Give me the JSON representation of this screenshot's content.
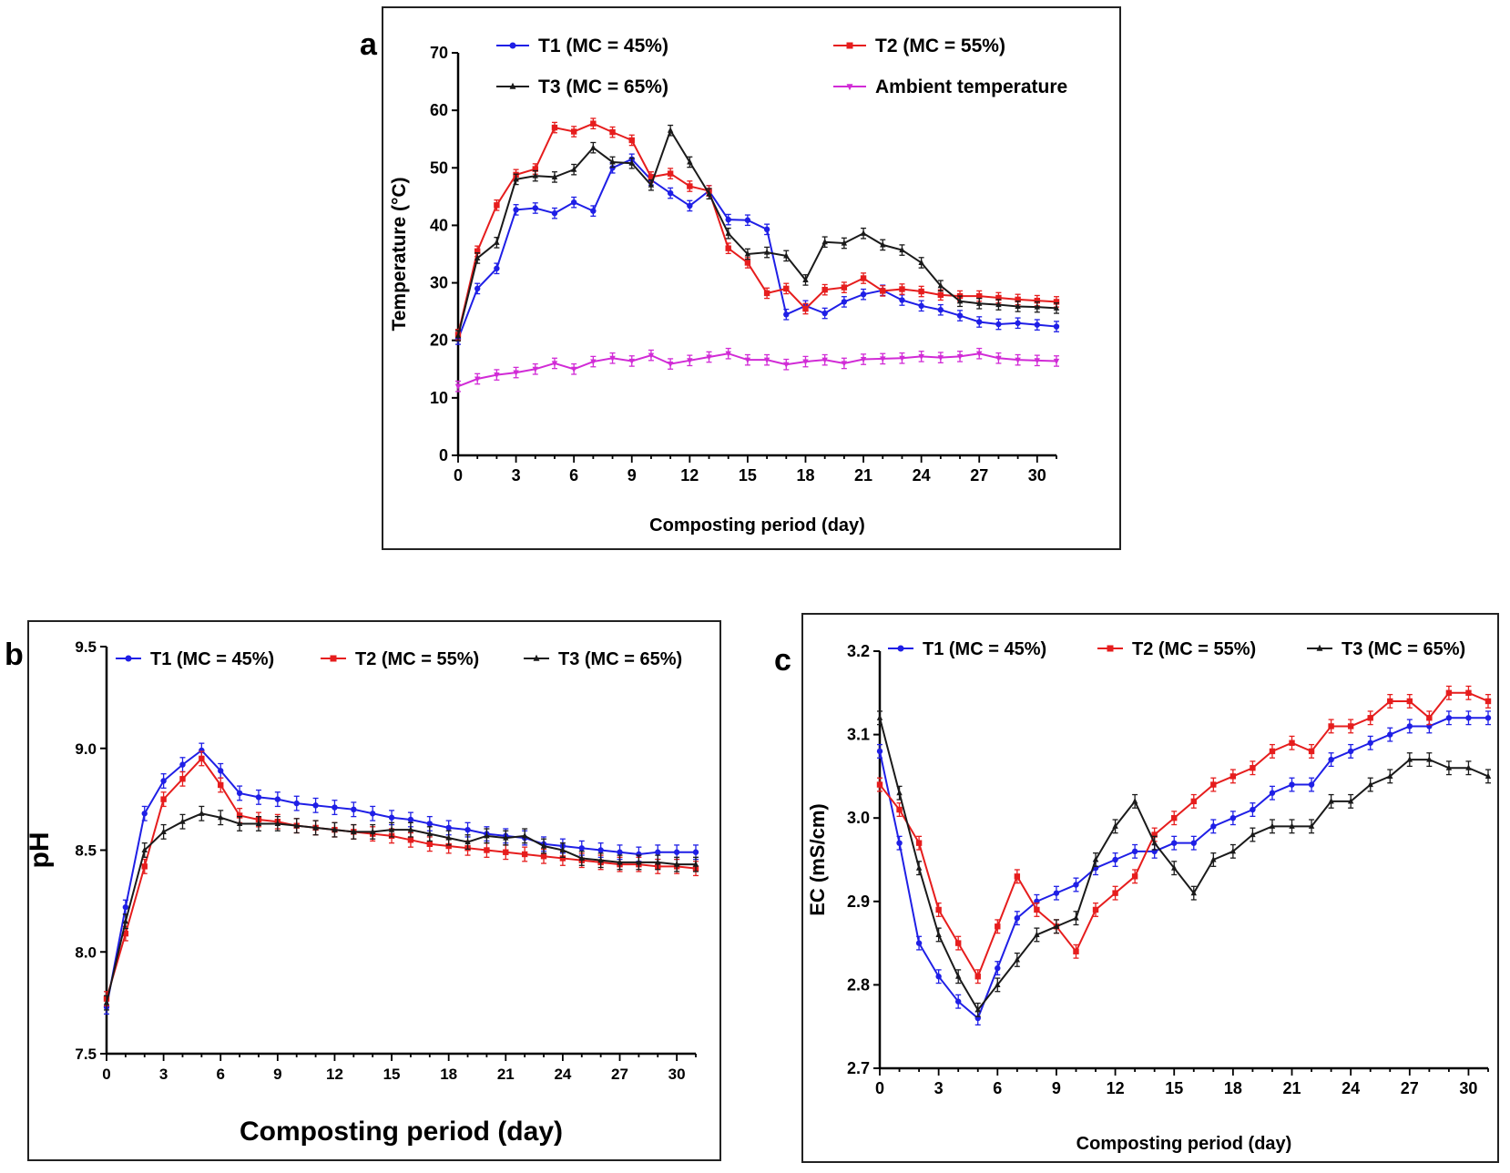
{
  "figure": {
    "labels": [
      "a",
      "b",
      "c"
    ]
  },
  "chart_data": [
    {
      "id": "a",
      "type": "line",
      "title": "",
      "xlabel": "Composting period (day)",
      "ylabel": "Temperature (°C)",
      "xlim": [
        0,
        31
      ],
      "ylim": [
        0,
        70
      ],
      "xticks": [
        0,
        3,
        6,
        9,
        12,
        15,
        18,
        21,
        24,
        27,
        30
      ],
      "yticks": [
        0,
        10,
        20,
        30,
        40,
        50,
        60,
        70
      ],
      "x": [
        0,
        1,
        2,
        3,
        4,
        5,
        6,
        7,
        8,
        9,
        10,
        11,
        12,
        13,
        14,
        15,
        16,
        17,
        18,
        19,
        20,
        21,
        22,
        23,
        24,
        25,
        26,
        27,
        28,
        29,
        30,
        31
      ],
      "legend_position": "top",
      "series": [
        {
          "name": "T1 (MC = 45%)",
          "color": "#1f1fe6",
          "marker": "circle",
          "values": [
            20.2,
            29,
            32.5,
            42.7,
            43,
            42.1,
            44,
            42.5,
            50,
            51.5,
            47.9,
            45.6,
            43.4,
            46,
            41,
            40.9,
            39.3,
            24.5,
            26,
            24.7,
            26.7,
            28,
            28.7,
            27,
            26,
            25.3,
            24.3,
            23.2,
            22.8,
            23,
            22.7,
            22.4
          ]
        },
        {
          "name": "T2 (MC = 55%)",
          "color": "#e61d1d",
          "marker": "square",
          "values": [
            21,
            35.5,
            43.5,
            48.8,
            49.8,
            57,
            56.3,
            57.7,
            56.2,
            54.8,
            48.4,
            49,
            46.8,
            46,
            36,
            33.5,
            28.2,
            29,
            25.5,
            28.8,
            29.2,
            30.8,
            28.6,
            28.9,
            28.5,
            27.9,
            27.7,
            27.7,
            27.4,
            27.1,
            26.9,
            26.7
          ]
        },
        {
          "name": "T3 (MC = 65%)",
          "color": "#1a1a1a",
          "marker": "triangle",
          "values": [
            20.8,
            34.3,
            37,
            48,
            48.6,
            48.4,
            49.7,
            53.5,
            51,
            50.8,
            47,
            56.5,
            51,
            45.5,
            38.6,
            35,
            35.3,
            34.7,
            30.5,
            37.1,
            36.9,
            38.6,
            36.6,
            35.7,
            33.5,
            29.5,
            26.8,
            26.4,
            26.2,
            25.9,
            25.8,
            25.6
          ]
        },
        {
          "name": "Ambient temperature",
          "color": "#d12bd6",
          "marker": "triangle-down",
          "values": [
            12,
            13.3,
            14,
            14.4,
            15,
            16,
            15,
            16.3,
            16.9,
            16.4,
            17.4,
            15.9,
            16.5,
            17.1,
            17.7,
            16.6,
            16.6,
            15.8,
            16.3,
            16.6,
            16,
            16.7,
            16.8,
            16.9,
            17.2,
            17,
            17.2,
            17.7,
            16.9,
            16.6,
            16.5,
            16.4
          ]
        }
      ]
    },
    {
      "id": "b",
      "type": "line",
      "title": "",
      "xlabel": "Composting period (day)",
      "ylabel": "pH",
      "xlim": [
        0,
        31
      ],
      "ylim": [
        7.5,
        9.5
      ],
      "xticks": [
        0,
        3,
        6,
        9,
        12,
        15,
        18,
        21,
        24,
        27,
        30
      ],
      "yticks": [
        7.5,
        8.0,
        8.5,
        9.0,
        9.5
      ],
      "x": [
        0,
        1,
        2,
        3,
        4,
        5,
        6,
        7,
        8,
        9,
        10,
        11,
        12,
        13,
        14,
        15,
        16,
        17,
        18,
        19,
        20,
        21,
        22,
        23,
        24,
        25,
        26,
        27,
        28,
        29,
        30,
        31
      ],
      "legend_position": "top",
      "series": [
        {
          "name": "T1 (MC = 45%)",
          "color": "#1f1fe6",
          "marker": "circle",
          "values": [
            7.73,
            8.22,
            8.68,
            8.84,
            8.92,
            8.99,
            8.89,
            8.78,
            8.76,
            8.75,
            8.73,
            8.72,
            8.71,
            8.7,
            8.68,
            8.66,
            8.65,
            8.63,
            8.61,
            8.6,
            8.58,
            8.57,
            8.56,
            8.53,
            8.52,
            8.51,
            8.5,
            8.49,
            8.48,
            8.49,
            8.49,
            8.49
          ]
        },
        {
          "name": "T2 (MC = 55%)",
          "color": "#e61d1d",
          "marker": "square",
          "values": [
            7.77,
            8.09,
            8.42,
            8.75,
            8.85,
            8.95,
            8.82,
            8.67,
            8.65,
            8.64,
            8.62,
            8.61,
            8.6,
            8.59,
            8.58,
            8.57,
            8.55,
            8.53,
            8.52,
            8.51,
            8.5,
            8.49,
            8.48,
            8.47,
            8.46,
            8.45,
            8.44,
            8.43,
            8.43,
            8.42,
            8.42,
            8.41
          ]
        },
        {
          "name": "T3 (MC = 65%)",
          "color": "#1a1a1a",
          "marker": "triangle",
          "values": [
            7.75,
            8.15,
            8.5,
            8.59,
            8.64,
            8.68,
            8.66,
            8.63,
            8.63,
            8.63,
            8.62,
            8.61,
            8.6,
            8.59,
            8.59,
            8.6,
            8.6,
            8.58,
            8.56,
            8.54,
            8.57,
            8.56,
            8.57,
            8.52,
            8.5,
            8.46,
            8.45,
            8.44,
            8.44,
            8.44,
            8.43,
            8.43
          ]
        }
      ]
    },
    {
      "id": "c",
      "type": "line",
      "title": "",
      "xlabel": "Composting period (day)",
      "ylabel": "EC (mS/cm)",
      "xlim": [
        0,
        31
      ],
      "ylim": [
        2.7,
        3.2
      ],
      "xticks": [
        0,
        3,
        6,
        9,
        12,
        15,
        18,
        21,
        24,
        27,
        30
      ],
      "yticks": [
        2.7,
        2.8,
        2.9,
        3.0,
        3.1,
        3.2
      ],
      "x": [
        0,
        1,
        2,
        3,
        4,
        5,
        6,
        7,
        8,
        9,
        10,
        11,
        12,
        13,
        14,
        15,
        16,
        17,
        18,
        19,
        20,
        21,
        22,
        23,
        24,
        25,
        26,
        27,
        28,
        29,
        30,
        31
      ],
      "legend_position": "top",
      "series": [
        {
          "name": "T1 (MC = 45%)",
          "color": "#1f1fe6",
          "marker": "circle",
          "values": [
            3.08,
            2.97,
            2.85,
            2.81,
            2.78,
            2.76,
            2.82,
            2.88,
            2.9,
            2.91,
            2.92,
            2.94,
            2.95,
            2.96,
            2.96,
            2.97,
            2.97,
            2.99,
            3.0,
            3.01,
            3.03,
            3.04,
            3.04,
            3.07,
            3.08,
            3.09,
            3.1,
            3.11,
            3.11,
            3.12,
            3.12,
            3.12
          ]
        },
        {
          "name": "T2 (MC = 55%)",
          "color": "#e61d1d",
          "marker": "square",
          "values": [
            3.04,
            3.01,
            2.97,
            2.89,
            2.85,
            2.81,
            2.87,
            2.93,
            2.89,
            2.87,
            2.84,
            2.89,
            2.91,
            2.93,
            2.98,
            3.0,
            3.02,
            3.04,
            3.05,
            3.06,
            3.08,
            3.09,
            3.08,
            3.11,
            3.11,
            3.12,
            3.14,
            3.14,
            3.12,
            3.15,
            3.15,
            3.14
          ]
        },
        {
          "name": "T3 (MC = 65%)",
          "color": "#1a1a1a",
          "marker": "triangle",
          "values": [
            3.12,
            3.03,
            2.94,
            2.86,
            2.81,
            2.77,
            2.8,
            2.83,
            2.86,
            2.87,
            2.88,
            2.95,
            2.99,
            3.02,
            2.97,
            2.94,
            2.91,
            2.95,
            2.96,
            2.98,
            2.99,
            2.99,
            2.99,
            3.02,
            3.02,
            3.04,
            3.05,
            3.07,
            3.07,
            3.06,
            3.06,
            3.05
          ]
        }
      ]
    }
  ]
}
